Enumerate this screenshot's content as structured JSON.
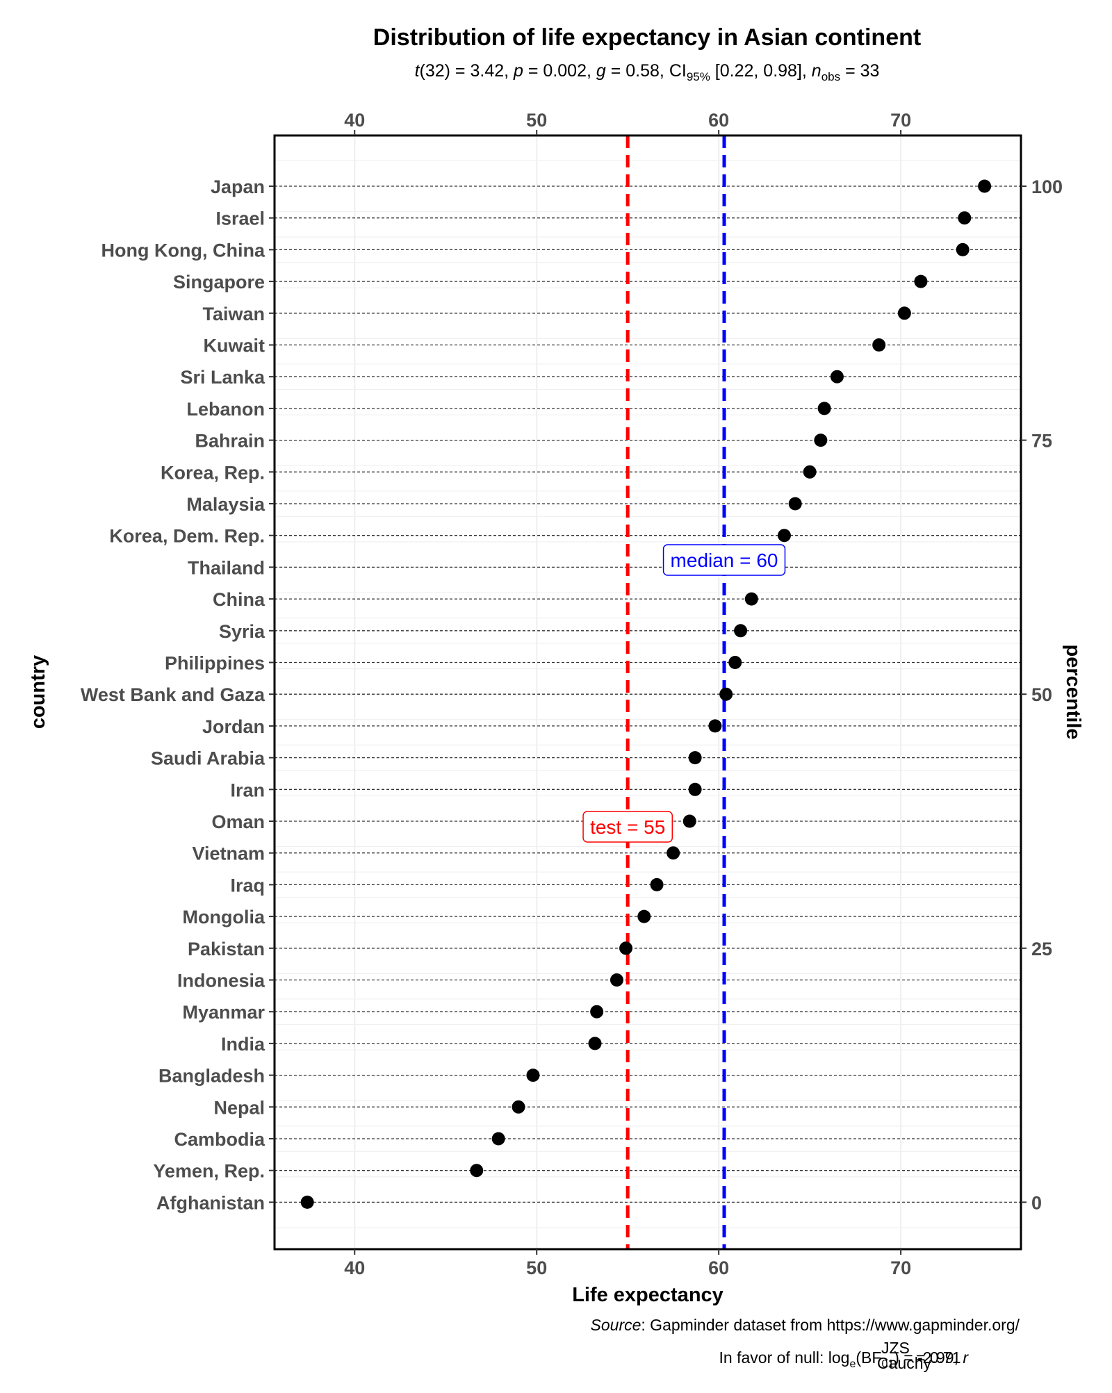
{
  "chart_data": {
    "type": "scatter",
    "title": "Distribution of life expectancy in Asian continent",
    "subtitle": {
      "t_sym": "t",
      "t_val": "(32) = 3.42, ",
      "p_sym": "p",
      "p_val": " = 0.002, ",
      "g_sym": "g",
      "g_val": " = 0.58, ",
      "ci_label": "CI",
      "ci_sub": "95%",
      "ci_val": " [0.22, 0.98], ",
      "n_sym": "n",
      "n_sub": "obs",
      "n_val": " = 33"
    },
    "xlabel": "Life expectancy",
    "ylabel": "country",
    "y2label": "percentile",
    "xlim": [
      35.6,
      76.6
    ],
    "x_ticks": [
      "40",
      "50",
      "60",
      "70"
    ],
    "y2_ticks": [
      "0",
      "25",
      "50",
      "75",
      "100"
    ],
    "grid": true,
    "vlines": [
      {
        "value": 55.0,
        "color": "#ff0000",
        "label_name": "test",
        "label_value": "55"
      },
      {
        "value": 60.3,
        "color": "#0000ff",
        "label_name": "median",
        "label_value": "60"
      }
    ],
    "points": [
      {
        "country": "Japan",
        "value": 74.6
      },
      {
        "country": "Israel",
        "value": 73.5
      },
      {
        "country": "Hong Kong, China",
        "value": 73.4
      },
      {
        "country": "Singapore",
        "value": 71.1
      },
      {
        "country": "Taiwan",
        "value": 70.2
      },
      {
        "country": "Kuwait",
        "value": 68.8
      },
      {
        "country": "Sri Lanka",
        "value": 66.5
      },
      {
        "country": "Lebanon",
        "value": 65.8
      },
      {
        "country": "Bahrain",
        "value": 65.6
      },
      {
        "country": "Korea, Rep.",
        "value": 65.0
      },
      {
        "country": "Malaysia",
        "value": 64.2
      },
      {
        "country": "Korea, Dem. Rep.",
        "value": 63.6
      },
      {
        "country": "Thailand",
        "value": 62.2
      },
      {
        "country": "China",
        "value": 61.8
      },
      {
        "country": "Syria",
        "value": 61.2
      },
      {
        "country": "Philippines",
        "value": 60.9
      },
      {
        "country": "West Bank and Gaza",
        "value": 60.4
      },
      {
        "country": "Jordan",
        "value": 59.8
      },
      {
        "country": "Saudi Arabia",
        "value": 58.7
      },
      {
        "country": "Iran",
        "value": 58.7
      },
      {
        "country": "Oman",
        "value": 58.4
      },
      {
        "country": "Vietnam",
        "value": 57.5
      },
      {
        "country": "Iraq",
        "value": 56.6
      },
      {
        "country": "Mongolia",
        "value": 55.9
      },
      {
        "country": "Pakistan",
        "value": 54.9
      },
      {
        "country": "Indonesia",
        "value": 54.4
      },
      {
        "country": "Myanmar",
        "value": 53.3
      },
      {
        "country": "India",
        "value": 53.2
      },
      {
        "country": "Bangladesh",
        "value": 49.8
      },
      {
        "country": "Nepal",
        "value": 49.0
      },
      {
        "country": "Cambodia",
        "value": 47.9
      },
      {
        "country": "Yemen, Rep.",
        "value": 46.7
      },
      {
        "country": "Afghanistan",
        "value": 37.4
      }
    ],
    "caption": {
      "source_label": "Source",
      "source_text": ": Gapminder dataset from https://www.gapminder.org/",
      "bf_prefix": "In favor of null: log",
      "bf_sub_e": "e",
      "bf_mid": "(BF",
      "bf_sub_01": "01",
      "bf_val": ") = -2.99, ",
      "r_sym": "r",
      "r_sup": "JZS",
      "r_sub": "Cauchy",
      "r_val": " = 0.71"
    }
  }
}
